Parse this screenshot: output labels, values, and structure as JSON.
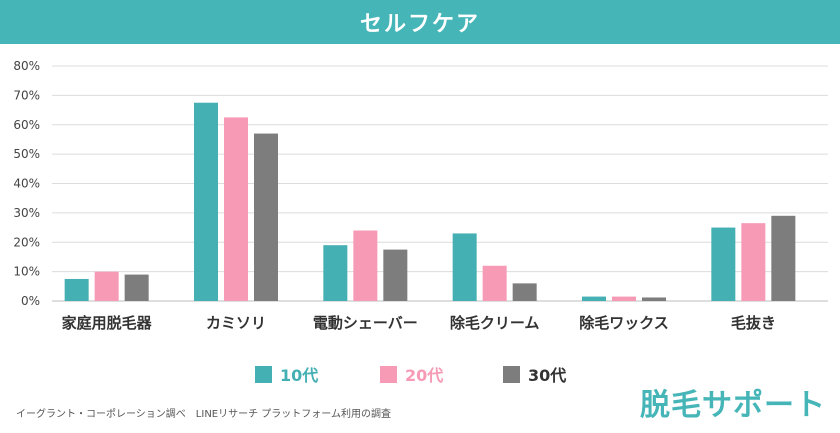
{
  "header": {
    "title": "セルフケア"
  },
  "chart_data": {
    "type": "bar",
    "title": "セルフケア",
    "categories": [
      "家庭用脱毛器",
      "カミソリ",
      "電動シェーバー",
      "除毛クリーム",
      "除毛ワックス",
      "毛抜き"
    ],
    "series": [
      {
        "name": "10代",
        "color": "#45b0b3",
        "values": [
          7.5,
          67.5,
          19,
          23,
          1.5,
          25
        ]
      },
      {
        "name": "20代",
        "color": "#f79ab5",
        "values": [
          10,
          62.5,
          24,
          12,
          1.5,
          26.5
        ]
      },
      {
        "name": "30代",
        "color": "#7d7d7d",
        "values": [
          9,
          57,
          17.5,
          6,
          1.2,
          29
        ]
      }
    ],
    "y_ticks": [
      "0%",
      "10%",
      "20%",
      "30%",
      "40%",
      "50%",
      "60%",
      "70%",
      "80%"
    ],
    "ylim": [
      0,
      80
    ],
    "ylabel": "",
    "xlabel": "",
    "grid": true,
    "legend_position": "bottom"
  },
  "legend": [
    {
      "label": "10代",
      "color": "#45b0b3"
    },
    {
      "label": "20代",
      "color": "#f79ab5"
    },
    {
      "label": "30代",
      "color": "#7d7d7d"
    }
  ],
  "footer": {
    "source": "イーグラント・コーポレーション調べ　LINEリサーチ プラットフォーム利用の調査",
    "brand": "脱毛サポート",
    "brand_color": "#45b5b8"
  }
}
